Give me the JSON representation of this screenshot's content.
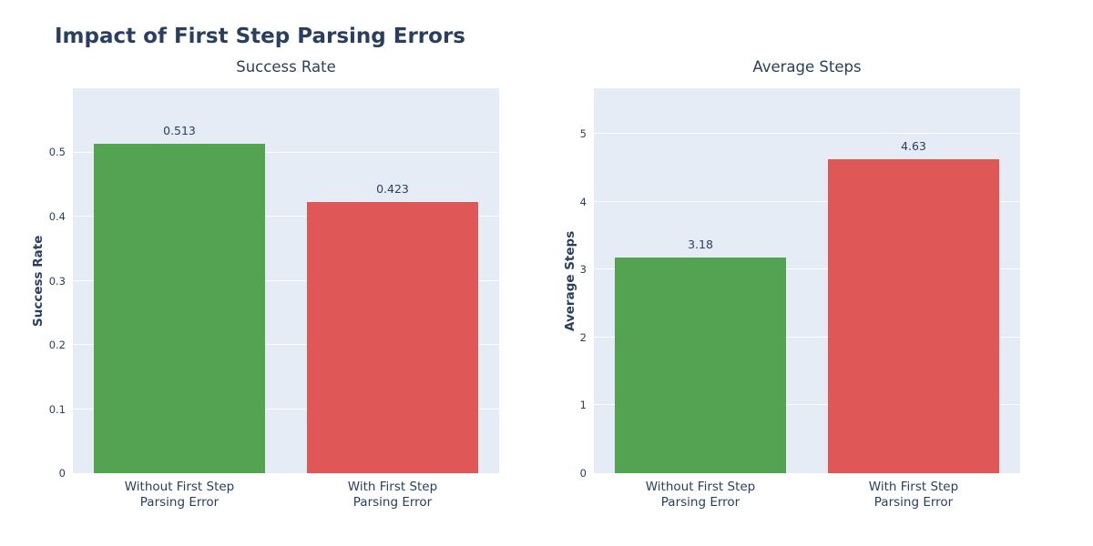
{
  "figure": {
    "title": "Impact of First Step Parsing Errors"
  },
  "colors": {
    "page_bg": "#ffffff",
    "plot_bg": "#e5ecf6",
    "grid": "#ffffff",
    "text": "#2a3f5f",
    "green": "#54a353",
    "red": "#e05757"
  },
  "chart_data": [
    {
      "type": "bar",
      "title": "Success Rate",
      "ylabel": "Success Rate",
      "xlabel": "",
      "categories": [
        [
          "Without First Step",
          "Parsing Error"
        ],
        [
          "With First Step",
          "Parsing Error"
        ]
      ],
      "values": [
        0.513,
        0.423
      ],
      "value_labels": [
        "0.513",
        "0.423"
      ],
      "bar_colors": [
        "#54a353",
        "#e05757"
      ],
      "ylim": [
        0,
        0.6
      ],
      "yticks": [
        0,
        0.1,
        0.2,
        0.3,
        0.4,
        0.5
      ],
      "ytick_labels": [
        "0",
        "0.1",
        "0.2",
        "0.3",
        "0.4",
        "0.5"
      ],
      "grid": true,
      "legend": false
    },
    {
      "type": "bar",
      "title": "Average Steps",
      "ylabel": "Average Steps",
      "xlabel": "",
      "categories": [
        [
          "Without First Step",
          "Parsing Error"
        ],
        [
          "With First Step",
          "Parsing Error"
        ]
      ],
      "values": [
        3.18,
        4.63
      ],
      "value_labels": [
        "3.18",
        "4.63"
      ],
      "bar_colors": [
        "#54a353",
        "#e05757"
      ],
      "ylim": [
        0,
        5.67
      ],
      "yticks": [
        0,
        1,
        2,
        3,
        4,
        5
      ],
      "ytick_labels": [
        "0",
        "1",
        "2",
        "3",
        "4",
        "5"
      ],
      "grid": true,
      "legend": false
    }
  ]
}
